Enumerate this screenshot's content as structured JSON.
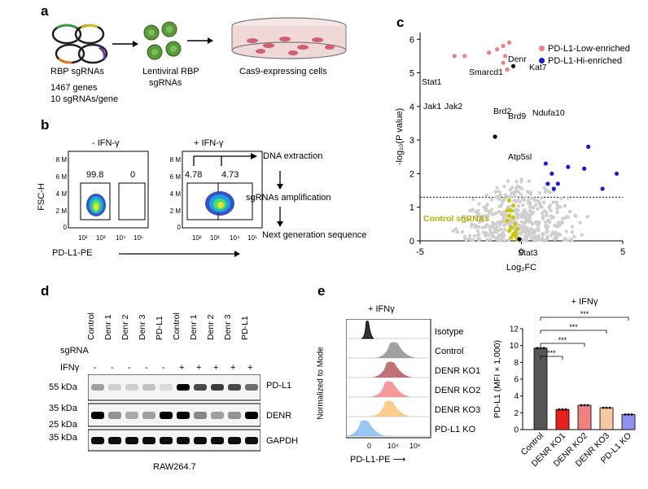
{
  "panels": {
    "a": "a",
    "b": "b",
    "c": "c",
    "d": "d",
    "e": "e"
  },
  "panel_a": {
    "lib_label": "RBP sgRNAs",
    "genes": "1467 genes",
    "per_gene": "10 sgRNAs/gene",
    "lenti_line1": "Lentiviral RBP",
    "lenti_line2": "sgRNAs",
    "dish_label": "Cas9-expressing cells",
    "colors": {
      "ring_green": "#3a9b3a",
      "ring_yellow": "#d8b620",
      "ring_orange": "#e07a20",
      "ring_purple": "#6a3a9a",
      "virus": "#5a9a3a",
      "dish": "#f0d8d8"
    }
  },
  "panel_b": {
    "cond1": "- IFN-γ",
    "cond2": "+ IFN-γ",
    "yaxis": "FSC-H",
    "xaxis": "PD-L1-PE",
    "yticks": [
      "8 M",
      "6 M",
      "4 M",
      "2 M",
      "0"
    ],
    "xticks": [
      "10²",
      "10³",
      "10⁴",
      "10⁵"
    ],
    "plot1_vals": [
      "99.8",
      "0"
    ],
    "plot2_vals": [
      "4.78",
      "4.73"
    ],
    "steps": [
      "DNA extraction",
      "sgRNAs amplification",
      "Next generation sequence"
    ]
  },
  "panel_c": {
    "ylabel": "-log₁₀(P value)",
    "xlabel": "Log₂FC",
    "legend": [
      {
        "name": "PD-L1-Low-enriched",
        "color": "#f08080"
      },
      {
        "name": "PD-L1-Hi-enriched",
        "color": "#1a1adf"
      }
    ],
    "control_label": "Control sgRNAs",
    "gene_labels": [
      "Stat1",
      "Jak1",
      "Jak2",
      "Smarcd1",
      "Denr",
      "Kat7",
      "Brd2",
      "Brd9",
      "Ndufa10",
      "Atp5sl",
      "Stat3"
    ]
  },
  "chart_data": [
    {
      "type": "scatter",
      "xlabel": "Log₂FC",
      "ylabel": "-log₁₀(P value)",
      "xlim": [
        -5,
        5
      ],
      "ylim": [
        0,
        6.2
      ],
      "xticks": [
        -5,
        0,
        5
      ],
      "yticks": [
        0,
        1,
        2,
        3,
        4,
        5,
        6
      ],
      "threshold_y": 1.3,
      "series": [
        {
          "name": "PD-L1-Low-enriched",
          "color": "#f08080",
          "points": [
            [
              -3.3,
              5.5
            ],
            [
              -2.8,
              5.5
            ],
            [
              -1.6,
              5.6
            ],
            [
              -1.2,
              5.7
            ],
            [
              -0.9,
              5.8
            ],
            [
              -0.8,
              5.5
            ],
            [
              -0.6,
              5.9
            ],
            [
              -0.9,
              5.3
            ],
            [
              -0.7,
              5.1
            ]
          ]
        },
        {
          "name": "PD-L1-Hi-enriched",
          "color": "#1a1adf",
          "points": [
            [
              1.2,
              2.3
            ],
            [
              1.5,
              2.0
            ],
            [
              1.8,
              1.7
            ],
            [
              1.3,
              1.7
            ],
            [
              1.6,
              1.55
            ],
            [
              2.3,
              2.2
            ],
            [
              3.1,
              2.15
            ],
            [
              3.3,
              2.8
            ],
            [
              4.0,
              1.55
            ],
            [
              4.7,
              2.0
            ]
          ]
        },
        {
          "name": "Control sgRNAs",
          "color": "#c8c800",
          "points": [
            [
              -0.6,
              1.2
            ],
            [
              -0.5,
              0.9
            ],
            [
              -0.4,
              0.7
            ],
            [
              -0.7,
              0.6
            ],
            [
              -0.3,
              0.5
            ],
            [
              -0.5,
              0.4
            ],
            [
              -0.2,
              0.35
            ],
            [
              -0.6,
              0.3
            ],
            [
              -0.4,
              0.2
            ],
            [
              -0.3,
              0.15
            ],
            [
              -0.5,
              0.1
            ],
            [
              -0.2,
              0.05
            ],
            [
              -0.7,
              0.9
            ],
            [
              -0.4,
              1.05
            ],
            [
              -0.6,
              0.75
            ],
            [
              -0.3,
              0.25
            ]
          ]
        }
      ]
    },
    {
      "type": "bar",
      "title": "+ IFNγ",
      "ylabel": "PD-L1 (MFI × 1,000)",
      "categories": [
        "Control",
        "DENR KO1",
        "DENR KO2",
        "DENR KO3",
        "PD-L1 KO"
      ],
      "values": [
        9.7,
        2.4,
        2.9,
        2.6,
        1.8
      ],
      "colors": [
        "#555555",
        "#e8201c",
        "#f08080",
        "#f8c8a0",
        "#9090f0"
      ],
      "ylim": [
        0,
        12
      ],
      "yticks": [
        0,
        2,
        4,
        6,
        8,
        10,
        12
      ],
      "significance": [
        "***",
        "***",
        "***",
        "***"
      ]
    }
  ],
  "panel_d": {
    "row_sgrna": "sgRNA",
    "row_ifn": "IFNγ",
    "lanes": [
      "Control",
      "Denr 1",
      "Denr 2",
      "Denr 3",
      "PD-L1",
      "Control",
      "Denr 1",
      "Denr 2",
      "Denr 3",
      "PD-L1"
    ],
    "ifn_signs": [
      "-",
      "-",
      "-",
      "-",
      "-",
      "+",
      "+",
      "+",
      "+",
      "+"
    ],
    "kda": [
      "55 kDa",
      "35 kDa",
      "25 kDa",
      "35 kDa"
    ],
    "bands": [
      "PD-L1",
      "DENR",
      "GAPDH"
    ],
    "cell_line": "RAW264.7"
  },
  "panel_e": {
    "cond": "+ IFNγ",
    "ylabel": "Normalized  to Mode",
    "xlabel": "PD-L1-PE",
    "xticks": [
      "0",
      "10⁴",
      "10⁶"
    ],
    "rows": [
      "Isotype",
      "Control",
      "DENR KO1",
      "DENR KO2",
      "DENR KO3",
      "PD-L1 KO"
    ],
    "row_colors": [
      "#333333",
      "#888888",
      "#b05050",
      "#f08080",
      "#f8c070",
      "#80b8f0"
    ]
  }
}
